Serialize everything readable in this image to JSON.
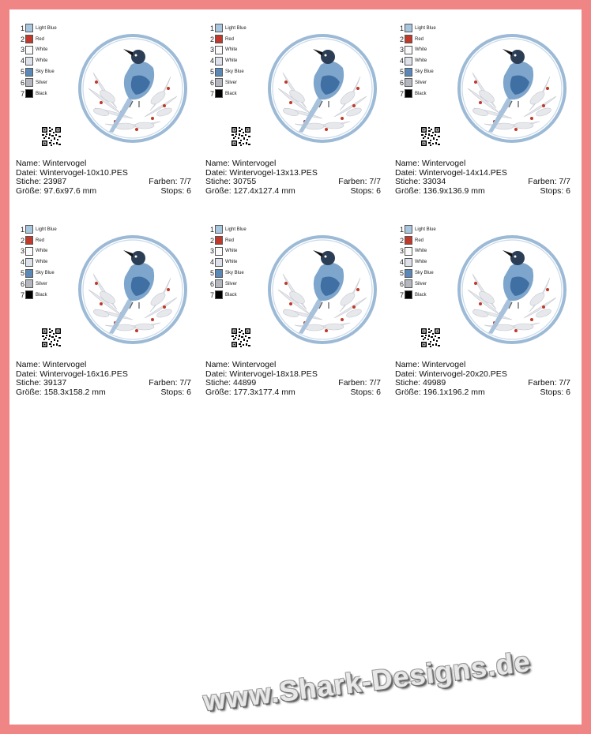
{
  "labels": {
    "name": "Name: Wintervogel",
    "file_prefix": "Datei: ",
    "stitches_prefix": "Stiche: ",
    "size_prefix": "Größe: ",
    "colors": "Farben: 7/7",
    "stops": "Stops: 6"
  },
  "colors": [
    {
      "num": "1",
      "name": "Light Blue",
      "hex": "#a9c6df"
    },
    {
      "num": "2",
      "name": "Red",
      "hex": "#c0392b"
    },
    {
      "num": "3",
      "name": "White",
      "hex": "#fafafa"
    },
    {
      "num": "4",
      "name": "White",
      "hex": "#dde2ea"
    },
    {
      "num": "5",
      "name": "Sky Blue",
      "hex": "#5a89b8"
    },
    {
      "num": "6",
      "name": "Silver",
      "hex": "#b4b8be"
    },
    {
      "num": "7",
      "name": "Black",
      "hex": "#000000"
    }
  ],
  "designs": [
    {
      "file": "Wintervogel-10x10.PES",
      "stitches": "23987",
      "size": "97.6x97.6 mm"
    },
    {
      "file": "Wintervogel-13x13.PES",
      "stitches": "30755",
      "size": "127.4x127.4 mm"
    },
    {
      "file": "Wintervogel-14x14.PES",
      "stitches": "33034",
      "size": "136.9x136.9 mm"
    },
    {
      "file": "Wintervogel-16x16.PES",
      "stitches": "39137",
      "size": "158.3x158.2 mm"
    },
    {
      "file": "Wintervogel-18x18.PES",
      "stitches": "44899",
      "size": "177.3x177.4 mm"
    },
    {
      "file": "Wintervogel-20x20.PES",
      "stitches": "49989",
      "size": "196.1x196.2 mm"
    }
  ],
  "watermark": "www.Shark-Designs.de"
}
